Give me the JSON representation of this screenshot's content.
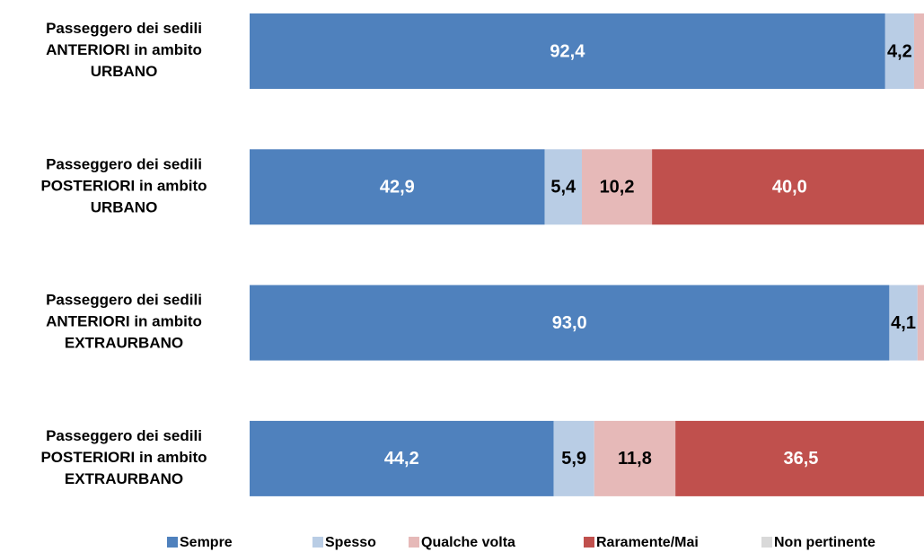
{
  "chart_data": {
    "type": "stacked_bar_horizontal",
    "categories": [
      "Passeggero dei  sedili\nANTERIORI in ambito\nURBANO",
      "Passeggero dei  sedili\nPOSTERIORI in ambito\nURBANO",
      "Passeggero dei  sedili\nANTERIORI in ambito\nEXTRAURBANO",
      "Passeggero dei  sedili\nPOSTERIORI in ambito\nEXTRAURBANO"
    ],
    "xlim": [
      0,
      100
    ],
    "legend": "bottom",
    "series": [
      {
        "name": "Sempre",
        "color": "#4f81bd",
        "values": [
          92.4,
          42.9,
          93.0,
          44.2
        ],
        "value_labels": [
          "92,4",
          "42,9",
          "93,0",
          "44,2"
        ]
      },
      {
        "name": "Spesso",
        "color": "#b9cde5",
        "values": [
          4.2,
          5.4,
          4.1,
          5.9
        ],
        "value_labels": [
          "4,2",
          "5,4",
          "4,1",
          "5,9"
        ]
      },
      {
        "name": "Qualche volta",
        "color": "#e6b9b8",
        "values": [
          1.5,
          10.2,
          1.0,
          11.8
        ],
        "value_labels": [
          null,
          "10,2",
          null,
          "11,8"
        ]
      },
      {
        "name": "Raramente/Mai",
        "color": "#c0504d",
        "values": [
          1.9,
          40.0,
          1.9,
          36.5
        ],
        "value_labels": [
          null,
          "40,0",
          null,
          "36,5"
        ]
      },
      {
        "name": "Non pertinente",
        "color": "#d9d9d9",
        "values": [
          0,
          1.5,
          0,
          1.6
        ],
        "value_labels": [
          null,
          null,
          null,
          null
        ]
      }
    ]
  }
}
